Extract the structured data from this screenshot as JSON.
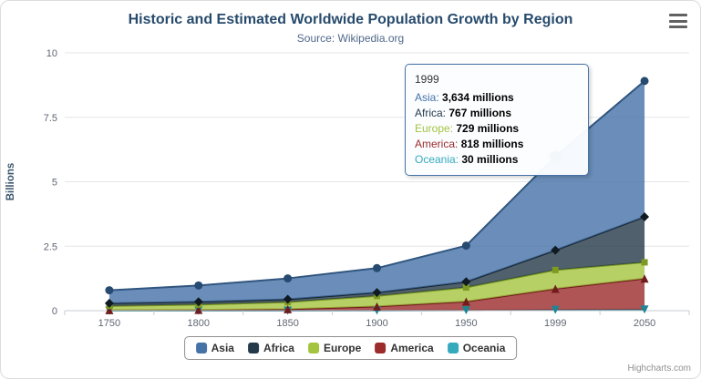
{
  "chart_data": {
    "type": "area",
    "stacking": "normal",
    "title": "Historic and Estimated Worldwide Population Growth by Region",
    "subtitle": "Source: Wikipedia.org",
    "ylabel": "Billions",
    "value_unit": "millions",
    "categories": [
      "1750",
      "1800",
      "1850",
      "1900",
      "1950",
      "1999",
      "2050"
    ],
    "yticks": [
      0,
      2.5,
      5,
      7.5,
      10
    ],
    "ylim": [
      0,
      10
    ],
    "grid": true,
    "legend_position": "bottom",
    "stack_order_bottom_to_top": [
      "Oceania",
      "America",
      "Europe",
      "Africa",
      "Asia"
    ],
    "hover": {
      "category_index": 5,
      "series": "Asia"
    },
    "series": [
      {
        "name": "Asia",
        "color": "#4572A7",
        "line_color": "#30557e",
        "marker_color": "#274b70",
        "marker_shape": "circle",
        "values": [
          502,
          635,
          809,
          947,
          1402,
          3634,
          5268
        ]
      },
      {
        "name": "Africa",
        "color": "#243949",
        "line_color": "#16242f",
        "marker_color": "#0f1a22",
        "marker_shape": "diamond",
        "values": [
          106,
          107,
          111,
          133,
          221,
          767,
          1766
        ]
      },
      {
        "name": "Europe",
        "color": "#A4C43F",
        "line_color": "#7e9a22",
        "marker_color": "#7e9a22",
        "marker_shape": "square",
        "values": [
          163,
          203,
          276,
          408,
          547,
          729,
          628
        ]
      },
      {
        "name": "America",
        "color": "#9C2B2B",
        "line_color": "#701c1c",
        "marker_color": "#701c1c",
        "marker_shape": "triangle",
        "values": [
          18,
          31,
          54,
          156,
          339,
          818,
          1201
        ]
      },
      {
        "name": "Oceania",
        "color": "#35AABC",
        "line_color": "#1f8495",
        "marker_color": "#1f8495",
        "marker_shape": "triangle-down",
        "values": [
          2,
          2,
          2,
          6,
          13,
          30,
          46
        ]
      }
    ]
  },
  "tooltip": {
    "header": "1999",
    "rows": [
      {
        "name": "Asia",
        "value": "3,634",
        "suffix": "millions"
      },
      {
        "name": "Africa",
        "value": "767",
        "suffix": "millions"
      },
      {
        "name": "Europe",
        "value": "729",
        "suffix": "millions"
      },
      {
        "name": "America",
        "value": "818",
        "suffix": "millions"
      },
      {
        "name": "Oceania",
        "value": "30",
        "suffix": "millions"
      }
    ]
  },
  "credits": {
    "label": "Highcharts.com"
  }
}
